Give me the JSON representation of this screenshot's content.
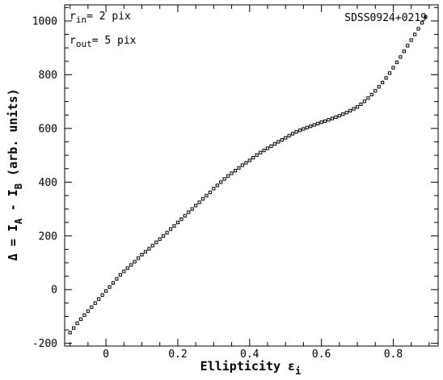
{
  "chart_data": {
    "type": "scatter",
    "title": "",
    "xlabel": {
      "main": "Ellipticity ε",
      "sub": "i"
    },
    "ylabel": {
      "pre": "Δ = I",
      "sub_a": "A",
      "mid": " - I",
      "sub_b": "B",
      "post": " (arb. units)"
    },
    "xlim": [
      -0.115,
      0.925
    ],
    "ylim": [
      -210,
      1060
    ],
    "x_ticks": [
      0,
      0.2,
      0.4,
      0.6,
      0.8
    ],
    "x_tick_labels": [
      "0",
      "0.2",
      "0.4",
      "0.6",
      "0.8"
    ],
    "y_ticks": [
      -200,
      0,
      200,
      400,
      600,
      800,
      1000
    ],
    "y_tick_labels": [
      "-200",
      "0",
      "200",
      "400",
      "600",
      "800",
      "1000"
    ],
    "grid": false,
    "marker": "square",
    "color": "#000000",
    "annotations": {
      "r_in": {
        "symbol": "r",
        "sub": "in",
        "text": "= 2 pix"
      },
      "r_out": {
        "symbol": "r",
        "sub": "out",
        "text": "= 5 pix"
      },
      "object": "SDSS0924+0219"
    },
    "series": [
      {
        "x": [
          -0.1,
          -0.09,
          -0.08,
          -0.07,
          -0.06,
          -0.05,
          -0.04,
          -0.03,
          -0.02,
          -0.01,
          0.0,
          0.01,
          0.02,
          0.03,
          0.04,
          0.05,
          0.06,
          0.07,
          0.08,
          0.09,
          0.1,
          0.11,
          0.12,
          0.13,
          0.14,
          0.15,
          0.16,
          0.17,
          0.18,
          0.19,
          0.2,
          0.21,
          0.22,
          0.23,
          0.24,
          0.25,
          0.26,
          0.27,
          0.28,
          0.29,
          0.3,
          0.31,
          0.32,
          0.33,
          0.34,
          0.35,
          0.36,
          0.37,
          0.38,
          0.39,
          0.4,
          0.41,
          0.42,
          0.43,
          0.44,
          0.45,
          0.46,
          0.47,
          0.48,
          0.49,
          0.5,
          0.51,
          0.52,
          0.53,
          0.54,
          0.55,
          0.56,
          0.57,
          0.58,
          0.59,
          0.6,
          0.61,
          0.62,
          0.63,
          0.64,
          0.65,
          0.66,
          0.67,
          0.68,
          0.69,
          0.7,
          0.71,
          0.72,
          0.73,
          0.74,
          0.75,
          0.76,
          0.77,
          0.78,
          0.79,
          0.8,
          0.81,
          0.82,
          0.83,
          0.84,
          0.85,
          0.86,
          0.87,
          0.88,
          0.89
        ],
        "y": [
          -160,
          -143,
          -125,
          -110,
          -95,
          -80,
          -65,
          -50,
          -35,
          -20,
          -5,
          10,
          25,
          40,
          55,
          68,
          80,
          92,
          104,
          117,
          130,
          141,
          152,
          164,
          176,
          188,
          200,
          212,
          225,
          237,
          250,
          262,
          275,
          288,
          300,
          313,
          325,
          338,
          350,
          362,
          376,
          388,
          400,
          412,
          423,
          433,
          443,
          453,
          463,
          472,
          481,
          491,
          501,
          510,
          518,
          526,
          534,
          542,
          550,
          557,
          565,
          573,
          580,
          587,
          593,
          598,
          603,
          608,
          613,
          618,
          623,
          627,
          632,
          637,
          642,
          647,
          653,
          659,
          666,
          673,
          680,
          690,
          701,
          713,
          726,
          740,
          755,
          771,
          788,
          806,
          826,
          846,
          866,
          887,
          908,
          929,
          950,
          971,
          993,
          1015
        ]
      }
    ]
  }
}
